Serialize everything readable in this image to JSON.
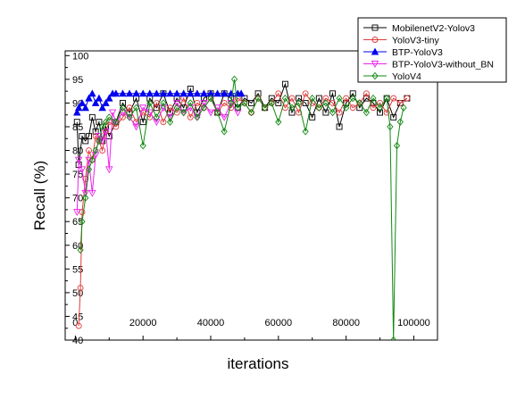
{
  "chart_data": {
    "type": "line",
    "title": "",
    "xlabel": "iterations",
    "ylabel": "Recall (%)",
    "xlim": [
      -3000,
      107000
    ],
    "ylim": [
      40,
      101
    ],
    "x_ticks": [
      0,
      20000,
      40000,
      60000,
      80000,
      100000
    ],
    "y_ticks": [
      40,
      45,
      50,
      55,
      60,
      65,
      70,
      75,
      80,
      85,
      90,
      95,
      100
    ],
    "grid": false,
    "legend_position": "top-right (outside plot box)",
    "series": [
      {
        "name": "MobilenetV2-Yolov3",
        "color": "#000000",
        "marker": "square",
        "points": [
          [
            500,
            86
          ],
          [
            1000,
            77
          ],
          [
            2000,
            83
          ],
          [
            3000,
            82
          ],
          [
            4000,
            83
          ],
          [
            5000,
            87
          ],
          [
            6000,
            84
          ],
          [
            7000,
            86
          ],
          [
            8000,
            82
          ],
          [
            9000,
            85
          ],
          [
            10000,
            83
          ],
          [
            12000,
            86
          ],
          [
            14000,
            90
          ],
          [
            16000,
            88
          ],
          [
            18000,
            91
          ],
          [
            20000,
            86
          ],
          [
            22000,
            91
          ],
          [
            24000,
            89
          ],
          [
            26000,
            92
          ],
          [
            28000,
            88
          ],
          [
            30000,
            91
          ],
          [
            32000,
            89
          ],
          [
            34000,
            93
          ],
          [
            36000,
            88
          ],
          [
            38000,
            91
          ],
          [
            40000,
            92
          ],
          [
            42000,
            88
          ],
          [
            44000,
            92
          ],
          [
            46000,
            91
          ],
          [
            48000,
            89
          ],
          [
            50000,
            91
          ],
          [
            52000,
            90
          ],
          [
            54000,
            92
          ],
          [
            56000,
            89
          ],
          [
            58000,
            91
          ],
          [
            60000,
            90
          ],
          [
            62000,
            94
          ],
          [
            64000,
            88
          ],
          [
            66000,
            91
          ],
          [
            68000,
            90
          ],
          [
            70000,
            87
          ],
          [
            72000,
            91
          ],
          [
            74000,
            88
          ],
          [
            76000,
            92
          ],
          [
            78000,
            85
          ],
          [
            80000,
            90
          ],
          [
            82000,
            92
          ],
          [
            84000,
            89
          ],
          [
            86000,
            91
          ],
          [
            88000,
            90
          ],
          [
            90000,
            88
          ],
          [
            92000,
            91
          ],
          [
            94000,
            87
          ],
          [
            96000,
            90
          ],
          [
            98000,
            91
          ]
        ]
      },
      {
        "name": "YoloV3-tiny",
        "color": "#e03a3a",
        "marker": "circle",
        "points": [
          [
            1000,
            43
          ],
          [
            1500,
            51
          ],
          [
            2000,
            67
          ],
          [
            3000,
            74
          ],
          [
            4000,
            80
          ],
          [
            5000,
            78
          ],
          [
            6000,
            83
          ],
          [
            7000,
            82
          ],
          [
            8000,
            80
          ],
          [
            9000,
            84
          ],
          [
            10000,
            86
          ],
          [
            12000,
            85
          ],
          [
            14000,
            87
          ],
          [
            16000,
            89
          ],
          [
            18000,
            86
          ],
          [
            20000,
            88
          ],
          [
            22000,
            87
          ],
          [
            24000,
            90
          ],
          [
            26000,
            86
          ],
          [
            28000,
            89
          ],
          [
            30000,
            88
          ],
          [
            32000,
            91
          ],
          [
            34000,
            87
          ],
          [
            36000,
            90
          ],
          [
            38000,
            89
          ],
          [
            40000,
            91
          ],
          [
            42000,
            88
          ],
          [
            44000,
            90
          ],
          [
            46000,
            89
          ],
          [
            48000,
            91
          ],
          [
            50000,
            90
          ],
          [
            52000,
            88
          ],
          [
            54000,
            91
          ],
          [
            56000,
            89
          ],
          [
            58000,
            90
          ],
          [
            60000,
            92
          ],
          [
            62000,
            89
          ],
          [
            64000,
            91
          ],
          [
            66000,
            88
          ],
          [
            68000,
            92
          ],
          [
            70000,
            90
          ],
          [
            72000,
            89
          ],
          [
            74000,
            91
          ],
          [
            76000,
            90
          ],
          [
            78000,
            88
          ],
          [
            80000,
            91
          ],
          [
            82000,
            89
          ],
          [
            84000,
            90
          ],
          [
            86000,
            92
          ],
          [
            88000,
            89
          ],
          [
            90000,
            90
          ],
          [
            92000,
            88
          ],
          [
            94000,
            91
          ],
          [
            96000,
            90
          ],
          [
            98000,
            91
          ]
        ]
      },
      {
        "name": "BTP-YoloV3",
        "color": "#0000ee",
        "marker": "triangle-up",
        "points": [
          [
            500,
            88
          ],
          [
            1000,
            89
          ],
          [
            2000,
            90
          ],
          [
            3000,
            89
          ],
          [
            4000,
            91
          ],
          [
            5000,
            92
          ],
          [
            6000,
            90
          ],
          [
            7000,
            91
          ],
          [
            8000,
            89
          ],
          [
            9000,
            90
          ],
          [
            10000,
            91
          ],
          [
            11000,
            92
          ],
          [
            12000,
            92
          ],
          [
            14000,
            92
          ],
          [
            16000,
            92
          ],
          [
            18000,
            92
          ],
          [
            20000,
            92
          ],
          [
            22000,
            92
          ],
          [
            24000,
            92
          ],
          [
            26000,
            92
          ],
          [
            28000,
            92
          ],
          [
            30000,
            92
          ],
          [
            32000,
            92
          ],
          [
            34000,
            92
          ],
          [
            36000,
            92
          ],
          [
            38000,
            92
          ],
          [
            40000,
            92
          ],
          [
            42000,
            92
          ],
          [
            44000,
            92
          ],
          [
            46000,
            92
          ],
          [
            48000,
            92
          ],
          [
            49000,
            92
          ]
        ]
      },
      {
        "name": "BTP-YoloV3-without_BN",
        "color": "#ee22ee",
        "marker": "triangle-down",
        "points": [
          [
            500,
            67
          ],
          [
            1000,
            78
          ],
          [
            2000,
            76
          ],
          [
            3000,
            71
          ],
          [
            4000,
            78
          ],
          [
            5000,
            71
          ],
          [
            6000,
            79
          ],
          [
            7000,
            83
          ],
          [
            8000,
            82
          ],
          [
            9000,
            84
          ],
          [
            10000,
            76
          ],
          [
            11000,
            88
          ],
          [
            12000,
            86
          ],
          [
            14000,
            88
          ],
          [
            16000,
            87
          ],
          [
            18000,
            85
          ],
          [
            20000,
            89
          ],
          [
            22000,
            88
          ],
          [
            24000,
            86
          ],
          [
            26000,
            89
          ],
          [
            28000,
            87
          ],
          [
            30000,
            90
          ],
          [
            32000,
            88
          ],
          [
            34000,
            89
          ],
          [
            36000,
            87
          ],
          [
            38000,
            90
          ],
          [
            40000,
            88
          ],
          [
            42000,
            89
          ],
          [
            44000,
            87
          ],
          [
            46000,
            90
          ],
          [
            48000,
            88
          ]
        ]
      },
      {
        "name": "YoloV4",
        "color": "#118811",
        "marker": "diamond",
        "points": [
          [
            1500,
            59
          ],
          [
            2000,
            65
          ],
          [
            3000,
            70
          ],
          [
            4000,
            76
          ],
          [
            5000,
            78
          ],
          [
            6000,
            80
          ],
          [
            7000,
            82
          ],
          [
            8000,
            85
          ],
          [
            9000,
            86
          ],
          [
            10000,
            87
          ],
          [
            12000,
            86
          ],
          [
            14000,
            89
          ],
          [
            16000,
            87
          ],
          [
            18000,
            89
          ],
          [
            20000,
            81
          ],
          [
            22000,
            90
          ],
          [
            24000,
            87
          ],
          [
            26000,
            90
          ],
          [
            28000,
            86
          ],
          [
            30000,
            89
          ],
          [
            32000,
            88
          ],
          [
            34000,
            90
          ],
          [
            36000,
            87
          ],
          [
            38000,
            89
          ],
          [
            40000,
            91
          ],
          [
            42000,
            88
          ],
          [
            44000,
            84
          ],
          [
            46000,
            90
          ],
          [
            47000,
            95
          ],
          [
            48000,
            89
          ],
          [
            50000,
            90
          ],
          [
            52000,
            88
          ],
          [
            54000,
            91
          ],
          [
            56000,
            89
          ],
          [
            58000,
            90
          ],
          [
            60000,
            86
          ],
          [
            62000,
            91
          ],
          [
            64000,
            89
          ],
          [
            66000,
            90
          ],
          [
            68000,
            84
          ],
          [
            70000,
            91
          ],
          [
            72000,
            89
          ],
          [
            74000,
            90
          ],
          [
            76000,
            88
          ],
          [
            78000,
            91
          ],
          [
            80000,
            89
          ],
          [
            82000,
            91
          ],
          [
            84000,
            90
          ],
          [
            86000,
            88
          ],
          [
            88000,
            91
          ],
          [
            90000,
            89
          ],
          [
            92000,
            91
          ],
          [
            93000,
            85
          ],
          [
            94000,
            40
          ],
          [
            95000,
            81
          ],
          [
            96000,
            86
          ],
          [
            97000,
            89
          ]
        ]
      }
    ]
  }
}
